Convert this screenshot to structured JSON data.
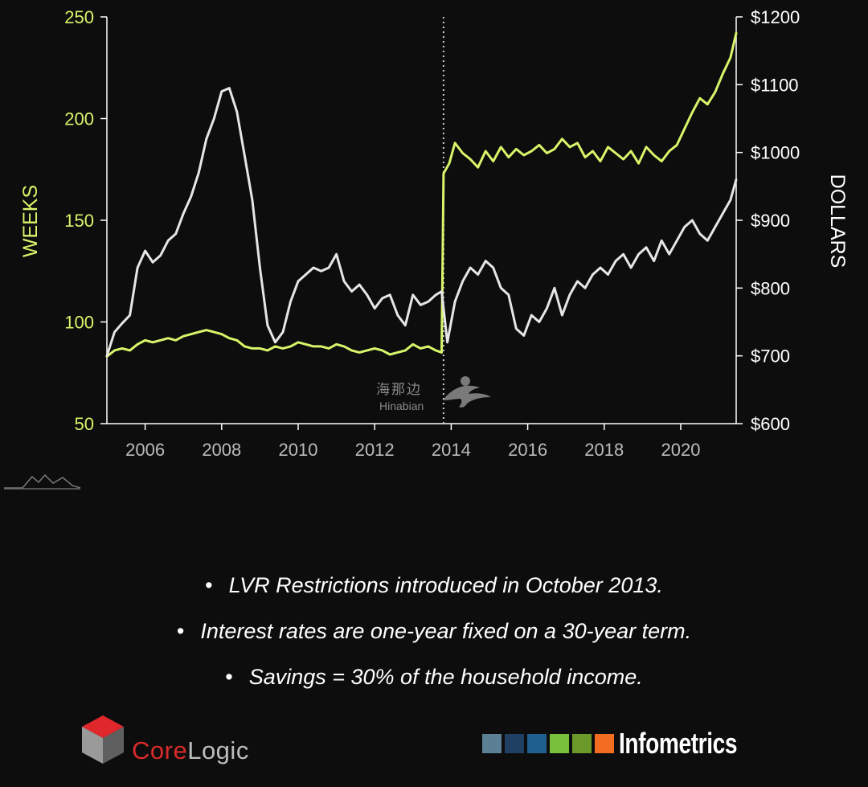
{
  "chart_data": {
    "type": "line",
    "title": "",
    "xlabel": "",
    "ylabel_left": "WEEKS",
    "ylabel_right": "DOLLARS",
    "x_ticks": [
      "2006",
      "2008",
      "2010",
      "2012",
      "2014",
      "2016",
      "2018",
      "2020"
    ],
    "x_tick_values": [
      2006,
      2008,
      2010,
      2012,
      2014,
      2016,
      2018,
      2020
    ],
    "xlim": [
      2005.0,
      2021.45
    ],
    "y_left_ticks": [
      "250",
      "200",
      "150",
      "100",
      "50"
    ],
    "y_left_tick_values": [
      250,
      200,
      150,
      100,
      50
    ],
    "ylim_left": [
      50,
      250
    ],
    "y_right_ticks": [
      "$1200",
      "$1100",
      "$1000",
      "$900",
      "$800",
      "$700",
      "$600"
    ],
    "y_right_tick_values": [
      1200,
      1100,
      1000,
      900,
      800,
      700,
      600
    ],
    "ylim_right": [
      600,
      1200
    ],
    "annotation_vline_x": 2013.8,
    "grid": false,
    "series": [
      {
        "name": "",
        "axis": "left",
        "color": "#d8f56a",
        "x": [
          2005.0,
          2005.2,
          2005.4,
          2005.6,
          2005.8,
          2006.0,
          2006.2,
          2006.4,
          2006.6,
          2006.8,
          2007.0,
          2007.2,
          2007.4,
          2007.6,
          2007.8,
          2008.0,
          2008.2,
          2008.4,
          2008.6,
          2008.8,
          2009.0,
          2009.2,
          2009.4,
          2009.6,
          2009.8,
          2010.0,
          2010.2,
          2010.4,
          2010.6,
          2010.8,
          2011.0,
          2011.2,
          2011.4,
          2011.6,
          2011.8,
          2012.0,
          2012.2,
          2012.4,
          2012.6,
          2012.8,
          2013.0,
          2013.2,
          2013.4,
          2013.6,
          2013.75,
          2013.8,
          2013.95,
          2014.1,
          2014.3,
          2014.5,
          2014.7,
          2014.9,
          2015.1,
          2015.3,
          2015.5,
          2015.7,
          2015.9,
          2016.1,
          2016.3,
          2016.5,
          2016.7,
          2016.9,
          2017.1,
          2017.3,
          2017.5,
          2017.7,
          2017.9,
          2018.1,
          2018.3,
          2018.5,
          2018.7,
          2018.9,
          2019.1,
          2019.3,
          2019.5,
          2019.7,
          2019.9,
          2020.1,
          2020.3,
          2020.5,
          2020.7,
          2020.9,
          2021.1,
          2021.3,
          2021.45
        ],
        "values": [
          83,
          86,
          87,
          86,
          89,
          91,
          90,
          91,
          92,
          91,
          93,
          94,
          95,
          96,
          95,
          94,
          92,
          91,
          88,
          87,
          87,
          86,
          88,
          87,
          88,
          90,
          89,
          88,
          88,
          87,
          89,
          88,
          86,
          85,
          86,
          87,
          86,
          84,
          85,
          86,
          89,
          87,
          88,
          86,
          85,
          173,
          178,
          188,
          183,
          180,
          176,
          184,
          179,
          186,
          181,
          185,
          182,
          184,
          187,
          183,
          185,
          190,
          186,
          188,
          181,
          184,
          179,
          186,
          183,
          180,
          184,
          178,
          186,
          182,
          179,
          184,
          187,
          195,
          203,
          210,
          207,
          213,
          222,
          230,
          242
        ]
      },
      {
        "name": "",
        "axis": "right",
        "color": "#e6e6e6",
        "x": [
          2005.0,
          2005.2,
          2005.4,
          2005.6,
          2005.8,
          2006.0,
          2006.2,
          2006.4,
          2006.6,
          2006.8,
          2007.0,
          2007.2,
          2007.4,
          2007.6,
          2007.8,
          2008.0,
          2008.2,
          2008.4,
          2008.6,
          2008.8,
          2009.0,
          2009.2,
          2009.4,
          2009.6,
          2009.8,
          2010.0,
          2010.2,
          2010.4,
          2010.6,
          2010.8,
          2011.0,
          2011.2,
          2011.4,
          2011.6,
          2011.8,
          2012.0,
          2012.2,
          2012.4,
          2012.6,
          2012.8,
          2013.0,
          2013.2,
          2013.4,
          2013.6,
          2013.75,
          2013.9,
          2014.1,
          2014.3,
          2014.5,
          2014.7,
          2014.9,
          2015.1,
          2015.3,
          2015.5,
          2015.7,
          2015.9,
          2016.1,
          2016.3,
          2016.5,
          2016.7,
          2016.9,
          2017.1,
          2017.3,
          2017.5,
          2017.7,
          2017.9,
          2018.1,
          2018.3,
          2018.5,
          2018.7,
          2018.9,
          2019.1,
          2019.3,
          2019.5,
          2019.7,
          2019.9,
          2020.1,
          2020.3,
          2020.5,
          2020.7,
          2020.9,
          2021.1,
          2021.3,
          2021.45
        ],
        "values": [
          700,
          735,
          748,
          760,
          830,
          855,
          838,
          848,
          870,
          880,
          910,
          935,
          970,
          1020,
          1050,
          1090,
          1095,
          1060,
          995,
          930,
          830,
          745,
          720,
          735,
          780,
          810,
          820,
          830,
          825,
          830,
          850,
          810,
          795,
          805,
          790,
          770,
          785,
          790,
          760,
          745,
          790,
          775,
          780,
          790,
          795,
          720,
          780,
          810,
          830,
          820,
          840,
          830,
          800,
          790,
          740,
          730,
          760,
          750,
          770,
          800,
          760,
          790,
          810,
          800,
          820,
          830,
          820,
          840,
          850,
          830,
          850,
          860,
          840,
          870,
          850,
          870,
          890,
          900,
          880,
          870,
          890,
          910,
          930,
          960
        ]
      }
    ]
  },
  "watermark": {
    "chinese": "海那边",
    "latin": "Hinabian"
  },
  "notes": [
    "LVR Restrictions introduced in October 2013.",
    "Interest rates are one-year fixed on a 30-year term.",
    "Savings = 30% of the household income."
  ],
  "bullet": "•",
  "logos": {
    "corelogic": {
      "core": "Core",
      "logic": "Logic"
    },
    "infometrics": {
      "text": "Infometrics",
      "squares": [
        "#5b7f95",
        "#1f3f63",
        "#1f5f8f",
        "#78c03b",
        "#6b9a2a",
        "#f26d21"
      ]
    }
  },
  "colors": {
    "background": "#0d0d0d",
    "axis": "#ffffff",
    "left_axis_text": "#d8f56a",
    "right_axis_text": "#ffffff",
    "x_tick_text": "#bbbbbb",
    "corelogic_red": "#d82a2a"
  }
}
